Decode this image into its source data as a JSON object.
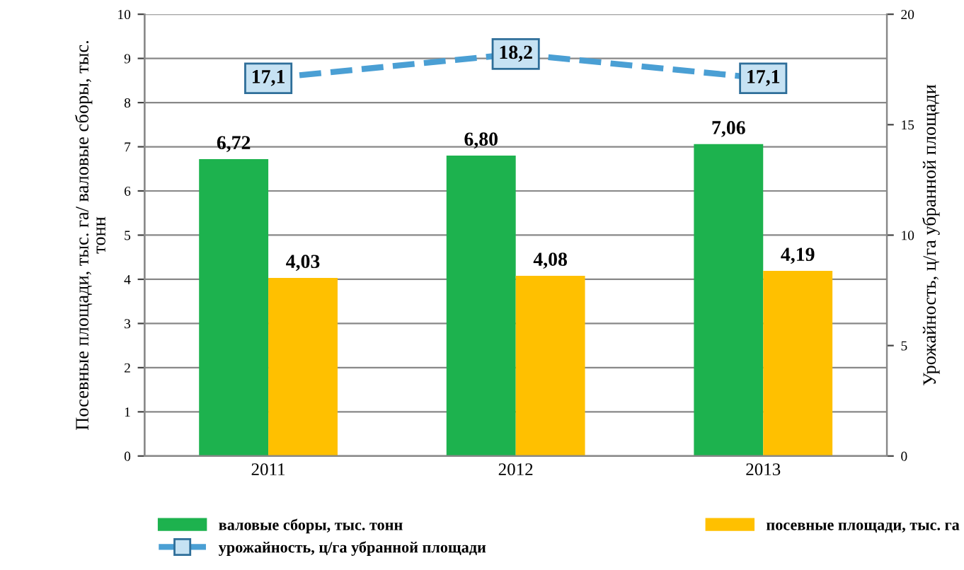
{
  "chart_data": {
    "type": "bar",
    "ylabel": "Посевные площади, тыс. га/ валовые сборы, тыс.\nтонн",
    "y2label": "Урожайность, ц/га убранной площади",
    "categories": [
      "2011",
      "2012",
      "2013"
    ],
    "series": [
      {
        "name": "валовые сборы, тыс. тонн",
        "color": "#1db24e",
        "values": [
          6.72,
          6.8,
          7.06
        ],
        "value_labels": [
          "6,72",
          "6,80",
          "7,06"
        ]
      },
      {
        "name": "посевные площади, тыс. га",
        "color": "#ffc000",
        "values": [
          4.03,
          4.08,
          4.19
        ],
        "value_labels": [
          "4,03",
          "4,08",
          "4,19"
        ]
      },
      {
        "name": "урожайность, ц/га убранной площади",
        "type": "line",
        "axis": "y2",
        "color": "#4a9fd4",
        "values": [
          17.1,
          18.2,
          17.1
        ],
        "value_labels": [
          "17,1",
          "18,2",
          "17,1"
        ],
        "marker": "square",
        "line_style": "dashed"
      }
    ],
    "ylim": [
      0,
      10
    ],
    "yticks": [
      0,
      1,
      2,
      3,
      4,
      5,
      6,
      7,
      8,
      9,
      10
    ],
    "y2lim": [
      0,
      20
    ],
    "y2ticks": [
      0,
      5,
      10,
      15,
      20
    ],
    "grid": "y",
    "legend": "bottom"
  }
}
